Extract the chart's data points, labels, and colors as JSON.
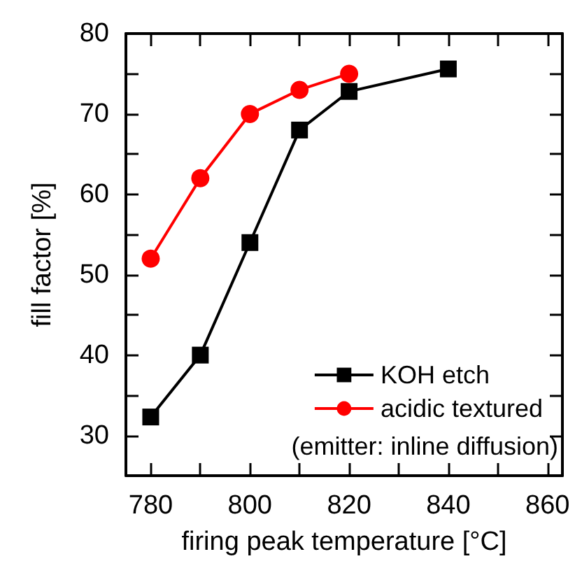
{
  "chart_data": {
    "type": "line",
    "xlabel": "firing peak temperature [°C]",
    "ylabel": "fill factor [%]",
    "xlim": [
      775,
      863
    ],
    "ylim": [
      25,
      80
    ],
    "xticks": [
      780,
      {
        "value": 790,
        "label": null
      },
      800,
      {
        "value": 810,
        "label": null
      },
      820,
      {
        "value": 830,
        "label": null
      },
      840,
      {
        "value": 850,
        "label": null
      },
      860
    ],
    "yticks": [
      {
        "value": 25,
        "label": null
      },
      30,
      {
        "value": 35,
        "label": null
      },
      40,
      {
        "value": 45,
        "label": null
      },
      50,
      {
        "value": 55,
        "label": null
      },
      60,
      {
        "value": 65,
        "label": null
      },
      70,
      {
        "value": 75,
        "label": null
      },
      80
    ],
    "series": [
      {
        "name": "KOH etch",
        "color": "#000000",
        "marker": "square",
        "x": [
          780,
          790,
          800,
          810,
          820,
          840
        ],
        "values": [
          32.3,
          40,
          54,
          68,
          72.8,
          75.6
        ]
      },
      {
        "name": "acidic textured",
        "color": "#ff0000",
        "marker": "circle",
        "x": [
          780,
          790,
          800,
          810,
          820
        ],
        "values": [
          52,
          62,
          70,
          73,
          75
        ]
      }
    ],
    "annotations": [
      "(emitter: inline diffusion)"
    ],
    "legend": "bottom right",
    "grid": false,
    "line_style": "solid"
  }
}
